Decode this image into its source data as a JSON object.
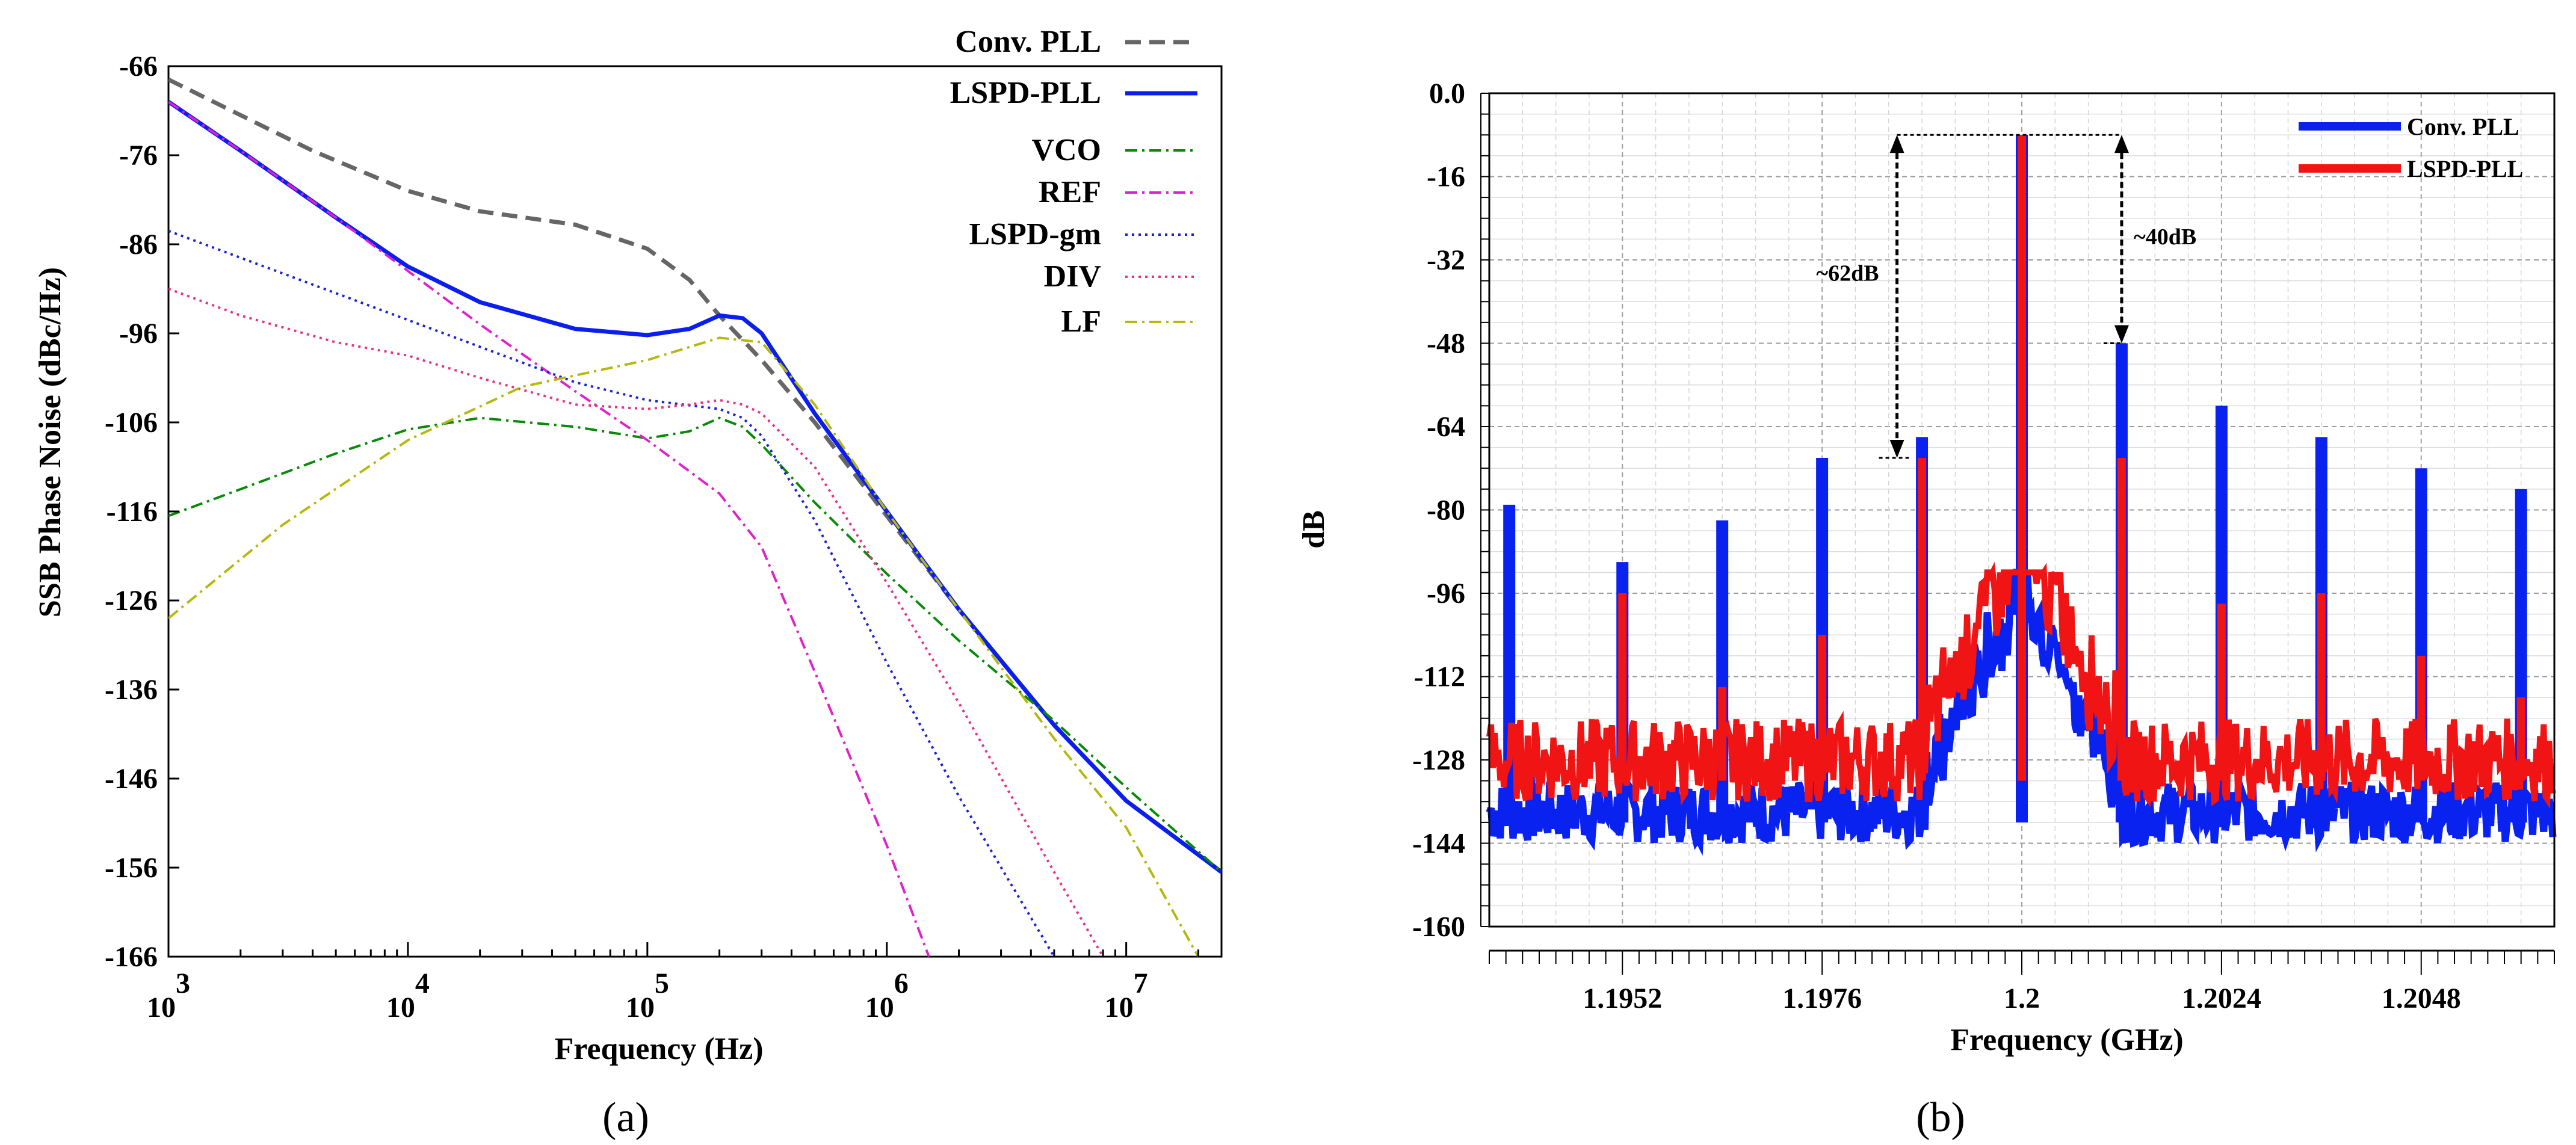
{
  "panels": {
    "a": "(a)",
    "b": "(b)"
  },
  "chart_data": [
    {
      "type": "line",
      "xscale": "log",
      "xlabel": "Frequency (Hz)",
      "ylabel": "SSB Phase Noise (dBc/Hz)",
      "xlim": [
        1000,
        25000000
      ],
      "ylim": [
        -166,
        -66
      ],
      "yticks": [
        -66,
        -76,
        -86,
        -96,
        -106,
        -116,
        -126,
        -136,
        -146,
        -156,
        -166
      ],
      "xticks": [
        {
          "base": "10",
          "exp": "3"
        },
        {
          "base": "10",
          "exp": "4"
        },
        {
          "base": "10",
          "exp": "5"
        },
        {
          "base": "10",
          "exp": "6"
        },
        {
          "base": "10",
          "exp": "7"
        }
      ],
      "legend_position": "top-right",
      "series": [
        {
          "name": "Conv. PLL",
          "color": "#666666",
          "style": "dashed",
          "x": [
            1000,
            2000,
            4000,
            10000,
            20000,
            50000,
            100000,
            150000,
            200000,
            300000,
            500000,
            1000000,
            2000000,
            5000000,
            10000000,
            25000000
          ],
          "y": [
            -67.5,
            -71.5,
            -75.5,
            -80,
            -82.3,
            -83.8,
            -86.5,
            -90,
            -94,
            -99,
            -106,
            -116.5,
            -127,
            -140,
            -148.5,
            -156.5
          ]
        },
        {
          "name": "LSPD-PLL",
          "color": "#0b1ef0",
          "style": "solid",
          "x": [
            1000,
            2000,
            5000,
            10000,
            20000,
            50000,
            100000,
            150000,
            200000,
            250000,
            300000,
            500000,
            1000000,
            2000000,
            5000000,
            10000000,
            25000000
          ],
          "y": [
            -70,
            -75.5,
            -83,
            -88.5,
            -92.5,
            -95.5,
            -96.2,
            -95.5,
            -94,
            -94.3,
            -96,
            -105,
            -116,
            -127,
            -140,
            -148.5,
            -156.5
          ]
        },
        {
          "name": "VCO",
          "color": "#078a07",
          "style": "dashdot",
          "x": [
            1000,
            2000,
            5000,
            10000,
            20000,
            50000,
            100000,
            150000,
            200000,
            250000,
            300000,
            500000,
            1000000,
            2000000,
            5000000,
            10000000,
            25000000
          ],
          "y": [
            -116.5,
            -113.5,
            -109.5,
            -106.8,
            -105.5,
            -106.5,
            -107.8,
            -107,
            -105.5,
            -106.5,
            -108.5,
            -115,
            -123,
            -130.5,
            -139.5,
            -147,
            -156.5
          ]
        },
        {
          "name": "REF",
          "color": "#e020cc",
          "style": "dashdot",
          "x": [
            1000,
            2000,
            5000,
            10000,
            20000,
            50000,
            100000,
            150000,
            200000,
            300000,
            500000,
            1000000,
            1500000
          ],
          "y": [
            -70,
            -75.5,
            -83,
            -89,
            -95,
            -102.5,
            -108,
            -111.5,
            -114,
            -120,
            -134,
            -153.5,
            -166
          ]
        },
        {
          "name": "LSPD-gm",
          "color": "#1a22d6",
          "style": "dotted",
          "x": [
            1000,
            10000,
            50000,
            100000,
            200000,
            250000,
            300000,
            500000,
            1000000,
            2000000,
            5000000
          ],
          "y": [
            -84.5,
            -94.5,
            -101.5,
            -103.5,
            -104.5,
            -105.5,
            -107.5,
            -117,
            -133,
            -148,
            -166
          ]
        },
        {
          "name": "DIV",
          "color": "#e8328a",
          "style": "dotted",
          "x": [
            1000,
            2000,
            5000,
            10000,
            20000,
            50000,
            100000,
            150000,
            200000,
            250000,
            300000,
            500000,
            1000000,
            2000000,
            5000000,
            8000000
          ],
          "y": [
            -91,
            -94,
            -97,
            -98.5,
            -101,
            -104,
            -104.5,
            -104,
            -103.5,
            -104,
            -105,
            -111,
            -124,
            -137.5,
            -156.5,
            -166
          ]
        },
        {
          "name": "LF",
          "color": "#b5b80f",
          "style": "dashdot",
          "x": [
            1000,
            3000,
            10000,
            30000,
            100000,
            200000,
            300000,
            500000,
            1000000,
            3000000,
            5000000,
            10000000,
            20000000
          ],
          "y": [
            -128,
            -117.5,
            -108,
            -102,
            -99,
            -96.5,
            -97,
            -104,
            -116,
            -133.5,
            -141.5,
            -151.5,
            -166
          ]
        }
      ]
    },
    {
      "type": "line",
      "xlabel": "Frequency (GHz)",
      "ylabel": "dB",
      "xlim": [
        1.1936,
        1.2064
      ],
      "ylim": [
        -160,
        0
      ],
      "yticks": [
        "0.0",
        "-16",
        "-32",
        "-48",
        "-64",
        "-80",
        "-96",
        "-112",
        "-128",
        "-144",
        "-160"
      ],
      "xticks": [
        "1.1952",
        "1.1976",
        "1.2",
        "1.2024",
        "1.2048"
      ],
      "legend_position": "top-right",
      "series": [
        {
          "name": "Conv. PLL",
          "color": "#0a22f0",
          "spurs": [
            {
              "x": 1.19384,
              "y": -79
            },
            {
              "x": 1.1952,
              "y": -90
            },
            {
              "x": 1.1964,
              "y": -82
            },
            {
              "x": 1.1976,
              "y": -70
            },
            {
              "x": 1.1988,
              "y": -66
            },
            {
              "x": 1.2,
              "y": -8
            },
            {
              "x": 1.2012,
              "y": -48
            },
            {
              "x": 1.2024,
              "y": -60
            },
            {
              "x": 1.2036,
              "y": -66
            },
            {
              "x": 1.2048,
              "y": -72
            },
            {
              "x": 1.206,
              "y": -76
            }
          ],
          "noise_floor": [
            -144,
            -132
          ]
        },
        {
          "name": "LSPD-PLL",
          "color": "#f01414",
          "spurs": [
            {
              "x": 1.1952,
              "y": -96
            },
            {
              "x": 1.1964,
              "y": -114
            },
            {
              "x": 1.1976,
              "y": -104
            },
            {
              "x": 1.1988,
              "y": -70
            },
            {
              "x": 1.2,
              "y": -8
            },
            {
              "x": 1.2012,
              "y": -70
            },
            {
              "x": 1.2024,
              "y": -98
            },
            {
              "x": 1.2036,
              "y": -96
            },
            {
              "x": 1.2048,
              "y": -108
            },
            {
              "x": 1.206,
              "y": -116
            }
          ],
          "noise_floor": [
            -136,
            -120
          ]
        }
      ],
      "annotations": [
        {
          "text": "~62dB",
          "x": 1.1985,
          "from": -8,
          "to": -70
        },
        {
          "text": "~40dB",
          "x": 1.2012,
          "from": -8,
          "to": -48
        }
      ]
    }
  ]
}
